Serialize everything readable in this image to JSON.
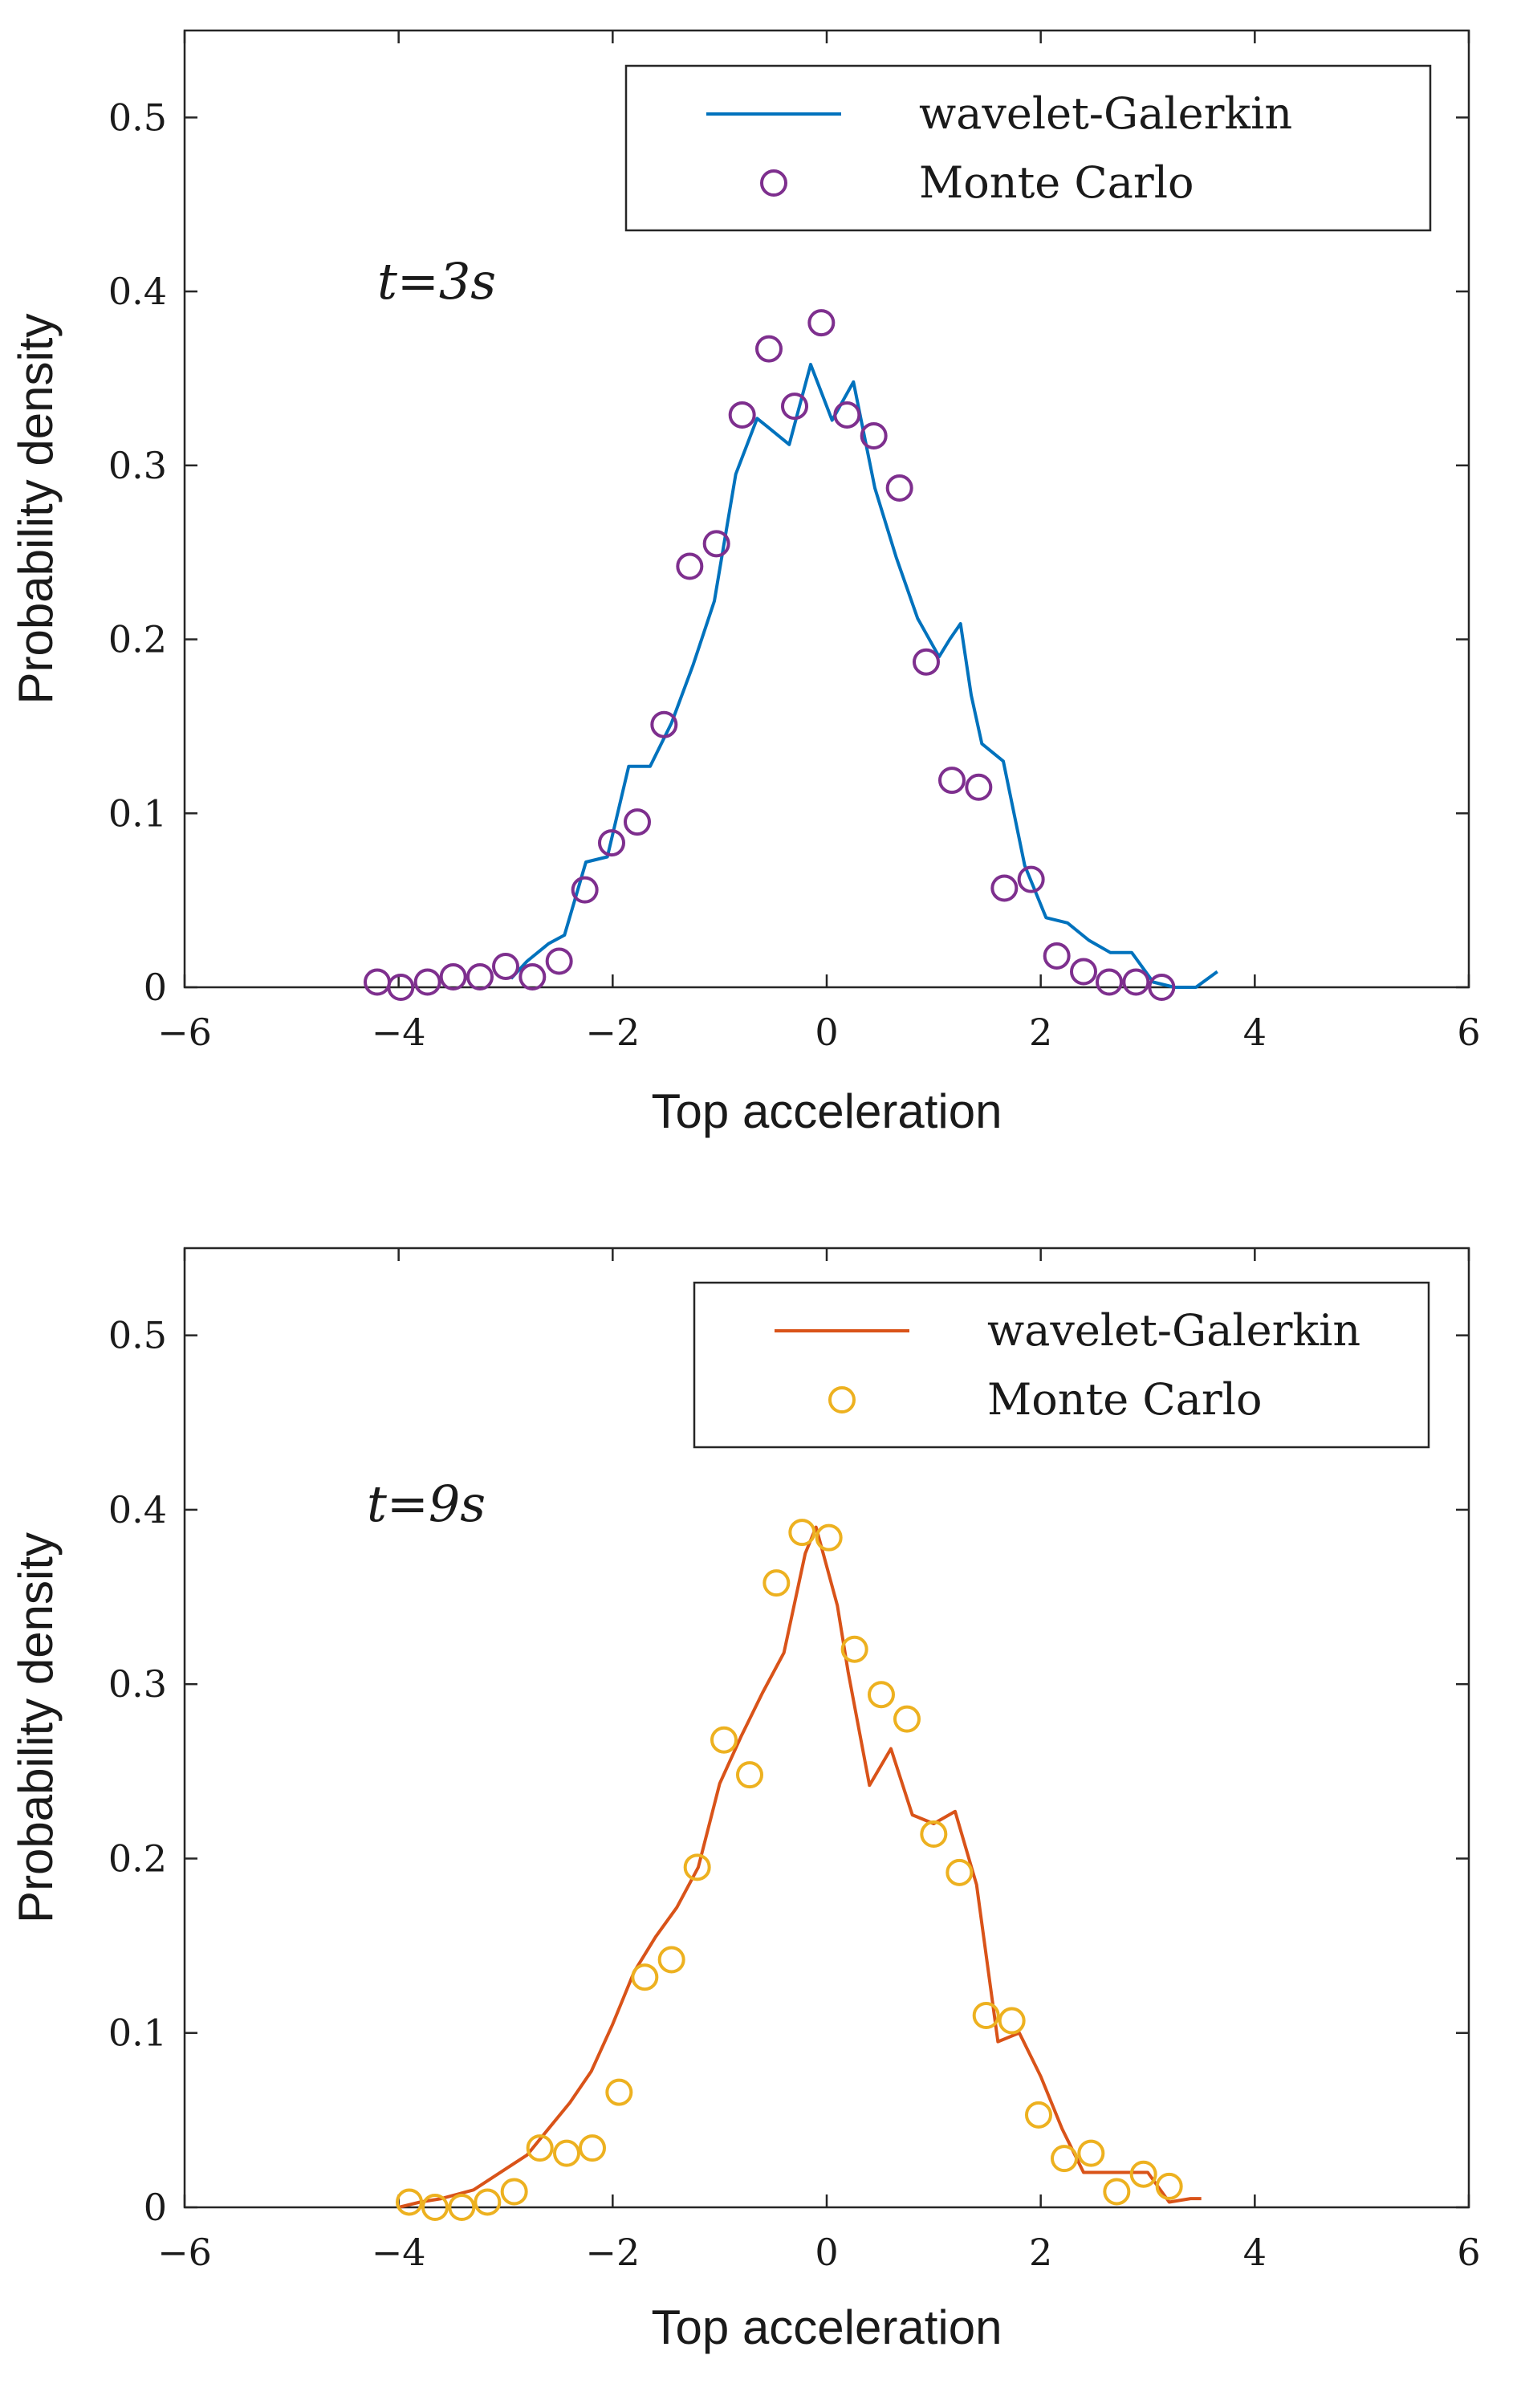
{
  "chart_data": [
    {
      "type": "line",
      "annotation": "t=3s",
      "xlabel": "Top acceleration",
      "ylabel": "Probability density",
      "xlim": [
        -6,
        6
      ],
      "ylim": [
        0,
        0.55
      ],
      "xticks": [
        -6,
        -4,
        -2,
        0,
        2,
        4,
        6
      ],
      "xtick_labels": [
        "−6",
        "−4",
        "−2",
        "0",
        "2",
        "4",
        "6"
      ],
      "yticks": [
        0,
        0.1,
        0.2,
        0.3,
        0.4,
        0.5
      ],
      "ytick_labels": [
        "0",
        "0.1",
        "0.2",
        "0.3",
        "0.4",
        "0.5"
      ],
      "legend_position": "top-right",
      "series": [
        {
          "name": "wavelet-Galerkin",
          "kind": "line",
          "color": "#0072BD",
          "x": [
            -2.95,
            -2.8,
            -2.6,
            -2.45,
            -2.25,
            -2.05,
            -1.85,
            -1.65,
            -1.45,
            -1.25,
            -1.05,
            -0.85,
            -0.65,
            -0.55,
            -0.35,
            -0.15,
            0.05,
            0.25,
            0.45,
            0.65,
            0.85,
            1.05,
            1.15,
            1.25,
            1.35,
            1.45,
            1.65,
            1.85,
            2.05,
            2.25,
            2.45,
            2.65,
            2.85,
            3.05,
            3.25,
            3.45,
            3.65
          ],
          "y": [
            0.005,
            0.015,
            0.025,
            0.03,
            0.072,
            0.075,
            0.127,
            0.127,
            0.152,
            0.185,
            0.222,
            0.295,
            0.327,
            0.322,
            0.312,
            0.358,
            0.326,
            0.348,
            0.287,
            0.247,
            0.212,
            0.19,
            0.2,
            0.209,
            0.168,
            0.14,
            0.13,
            0.07,
            0.04,
            0.037,
            0.027,
            0.02,
            0.02,
            0.003,
            0.0,
            0.0,
            0.009
          ]
        },
        {
          "name": "Monte Carlo",
          "kind": "scatter",
          "color": "#7E2F8E",
          "x": [
            -4.2,
            -3.98,
            -3.73,
            -3.49,
            -3.24,
            -3.0,
            -2.75,
            -2.5,
            -2.26,
            -2.01,
            -1.77,
            -1.52,
            -1.28,
            -1.03,
            -0.79,
            -0.54,
            -0.3,
            -0.05,
            0.19,
            0.44,
            0.68,
            0.93,
            1.17,
            1.42,
            1.66,
            1.91,
            2.15,
            2.4,
            2.64,
            2.89,
            3.13
          ],
          "y": [
            0.003,
            0.0,
            0.003,
            0.006,
            0.006,
            0.012,
            0.006,
            0.015,
            0.056,
            0.083,
            0.095,
            0.151,
            0.242,
            0.255,
            0.329,
            0.367,
            0.334,
            0.382,
            0.329,
            0.317,
            0.287,
            0.187,
            0.119,
            0.115,
            0.057,
            0.062,
            0.018,
            0.009,
            0.003,
            0.003,
            0.0
          ]
        }
      ]
    },
    {
      "type": "line",
      "annotation": "t=9s",
      "xlabel": "Top acceleration",
      "ylabel": "Probability density",
      "xlim": [
        -6,
        6
      ],
      "ylim": [
        0,
        0.55
      ],
      "xticks": [
        -6,
        -4,
        -2,
        0,
        2,
        4,
        6
      ],
      "xtick_labels": [
        "−6",
        "−4",
        "−2",
        "0",
        "2",
        "4",
        "6"
      ],
      "yticks": [
        0,
        0.1,
        0.2,
        0.3,
        0.4,
        0.5
      ],
      "ytick_labels": [
        "0",
        "0.1",
        "0.2",
        "0.3",
        "0.4",
        "0.5"
      ],
      "legend_position": "top-right",
      "series": [
        {
          "name": "wavelet-Galerkin",
          "kind": "line",
          "color": "#D95319",
          "x": [
            -4.0,
            -3.8,
            -3.6,
            -3.3,
            -3.0,
            -2.8,
            -2.6,
            -2.4,
            -2.2,
            -2.0,
            -1.8,
            -1.6,
            -1.4,
            -1.2,
            -1.0,
            -0.8,
            -0.6,
            -0.4,
            -0.2,
            -0.1,
            0.1,
            0.2,
            0.4,
            0.6,
            0.8,
            1.0,
            1.2,
            1.4,
            1.6,
            1.8,
            2.0,
            2.2,
            2.4,
            2.6,
            2.8,
            3.0,
            3.2,
            3.4,
            3.5
          ],
          "y": [
            0.0,
            0.003,
            0.005,
            0.01,
            0.022,
            0.03,
            0.045,
            0.06,
            0.078,
            0.105,
            0.135,
            0.155,
            0.172,
            0.195,
            0.243,
            0.27,
            0.295,
            0.318,
            0.375,
            0.39,
            0.345,
            0.307,
            0.242,
            0.263,
            0.225,
            0.22,
            0.227,
            0.185,
            0.095,
            0.1,
            0.075,
            0.045,
            0.02,
            0.02,
            0.02,
            0.02,
            0.003,
            0.005,
            0.005
          ]
        },
        {
          "name": "Monte Carlo",
          "kind": "scatter",
          "color": "#EDB120",
          "x": [
            -3.9,
            -3.66,
            -3.41,
            -3.17,
            -2.92,
            -2.68,
            -2.43,
            -2.19,
            -1.94,
            -1.7,
            -1.45,
            -1.21,
            -0.96,
            -0.72,
            -0.47,
            -0.23,
            0.02,
            0.26,
            0.51,
            0.75,
            1.0,
            1.24,
            1.49,
            1.73,
            1.98,
            2.22,
            2.47,
            2.71,
            2.96,
            3.2
          ],
          "y": [
            0.003,
            0.0,
            0.0,
            0.003,
            0.009,
            0.034,
            0.031,
            0.034,
            0.066,
            0.132,
            0.142,
            0.195,
            0.268,
            0.248,
            0.358,
            0.387,
            0.384,
            0.32,
            0.294,
            0.28,
            0.214,
            0.192,
            0.11,
            0.107,
            0.053,
            0.028,
            0.031,
            0.009,
            0.019,
            0.012
          ]
        }
      ]
    }
  ]
}
